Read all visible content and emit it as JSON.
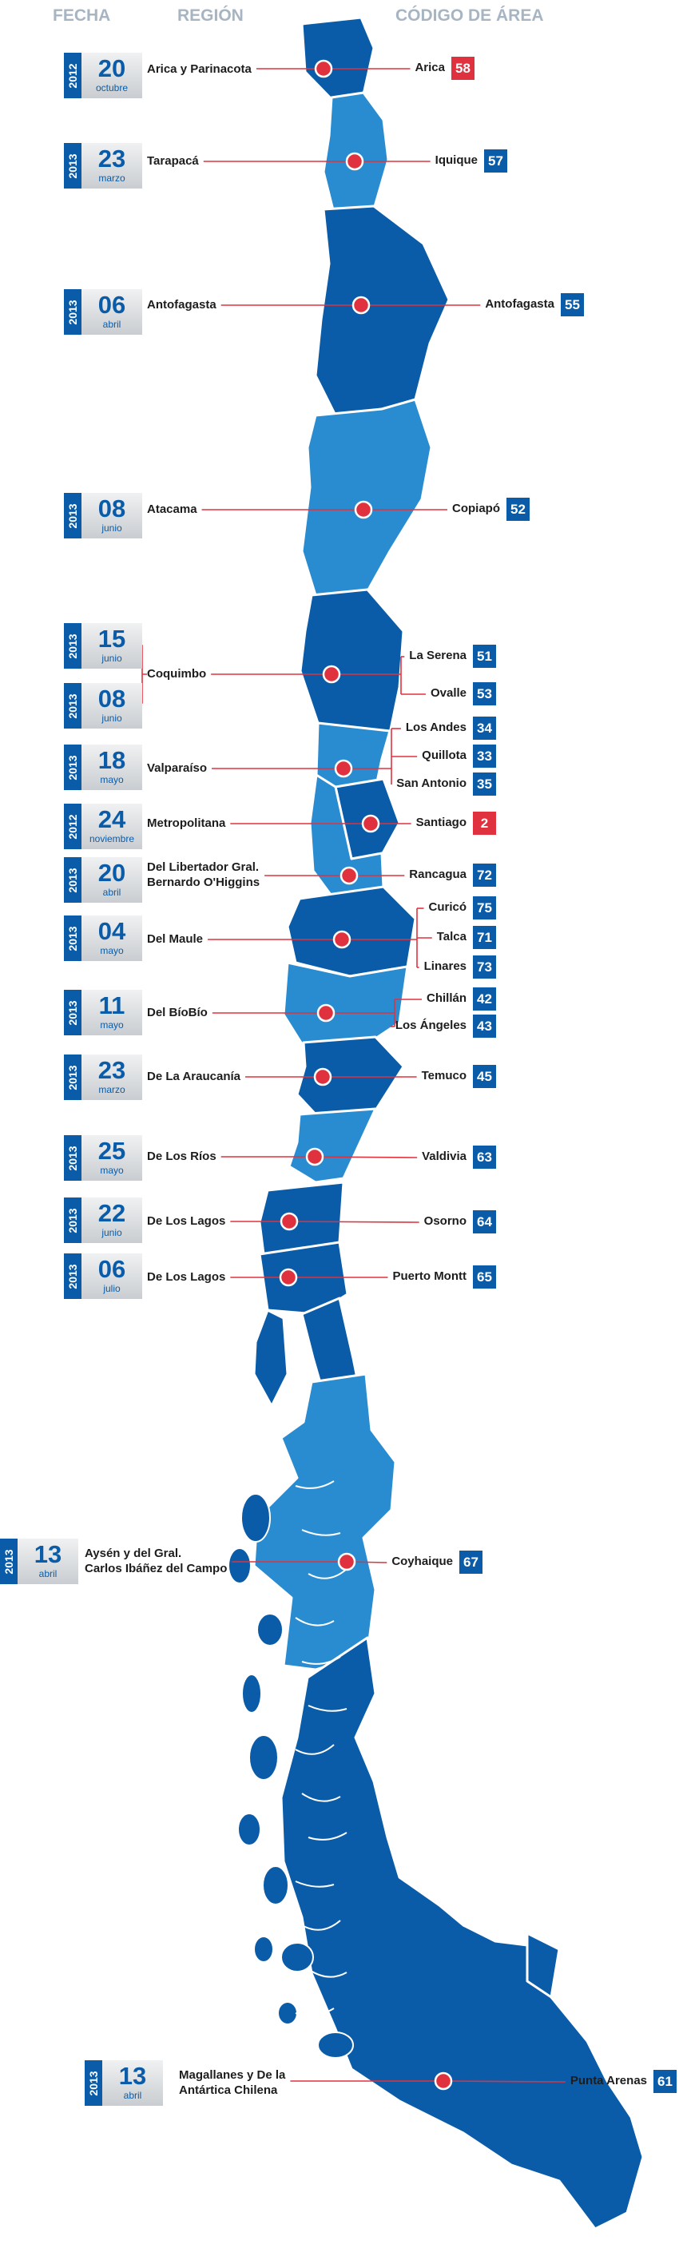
{
  "headers": {
    "fecha": "FECHA",
    "region": "REGIÓN",
    "codigo": "CÓDIGO DE ÁREA"
  },
  "colors": {
    "land_dark": "#0b5ca8",
    "land_light": "#2a8cd0",
    "line": "#e0323e",
    "code_blue": "#0b5ca8",
    "code_red": "#e0323e"
  },
  "dates": [
    {
      "year": "2012",
      "day": "20",
      "month": "octubre"
    },
    {
      "year": "2013",
      "day": "23",
      "month": "marzo"
    },
    {
      "year": "2013",
      "day": "06",
      "month": "abril"
    },
    {
      "year": "2013",
      "day": "08",
      "month": "junio"
    },
    {
      "year": "2013",
      "day": "15",
      "month": "junio"
    },
    {
      "year": "2013",
      "day": "08",
      "month": "junio"
    },
    {
      "year": "2013",
      "day": "18",
      "month": "mayo"
    },
    {
      "year": "2012",
      "day": "24",
      "month": "noviembre"
    },
    {
      "year": "2013",
      "day": "20",
      "month": "abril"
    },
    {
      "year": "2013",
      "day": "04",
      "month": "mayo"
    },
    {
      "year": "2013",
      "day": "11",
      "month": "mayo"
    },
    {
      "year": "2013",
      "day": "23",
      "month": "marzo"
    },
    {
      "year": "2013",
      "day": "25",
      "month": "mayo"
    },
    {
      "year": "2013",
      "day": "22",
      "month": "junio"
    },
    {
      "year": "2013",
      "day": "06",
      "month": "julio"
    },
    {
      "year": "2013",
      "day": "13",
      "month": "abril"
    },
    {
      "year": "2013",
      "day": "13",
      "month": "abril"
    }
  ],
  "regions": [
    {
      "lines": [
        "Arica y Parinacota"
      ]
    },
    {
      "lines": [
        "Tarapacá"
      ]
    },
    {
      "lines": [
        "Antofagasta"
      ]
    },
    {
      "lines": [
        "Atacama"
      ]
    },
    {
      "lines": [
        "Coquimbo"
      ]
    },
    {
      "lines": [
        "Valparaíso"
      ]
    },
    {
      "lines": [
        "Metropolitana"
      ]
    },
    {
      "lines": [
        "Del Libertador Gral.",
        "Bernardo O'Higgins"
      ]
    },
    {
      "lines": [
        "Del Maule"
      ]
    },
    {
      "lines": [
        "Del BíoBío"
      ]
    },
    {
      "lines": [
        "De La Araucanía"
      ]
    },
    {
      "lines": [
        "De Los Ríos"
      ]
    },
    {
      "lines": [
        "De Los Lagos"
      ]
    },
    {
      "lines": [
        "De Los Lagos"
      ]
    },
    {
      "lines": [
        "Aysén y del Gral.",
        "Carlos Ibáñez del Campo"
      ]
    },
    {
      "lines": [
        "Magallanes y De la",
        "Antártica Chilena"
      ]
    }
  ],
  "cities": [
    {
      "name": "Arica",
      "code": "58",
      "highlight": true
    },
    {
      "name": "Iquique",
      "code": "57",
      "highlight": false
    },
    {
      "name": "Antofagasta",
      "code": "55",
      "highlight": false
    },
    {
      "name": "Copiapó",
      "code": "52",
      "highlight": false
    },
    {
      "name": "La Serena",
      "code": "51",
      "highlight": false
    },
    {
      "name": "Ovalle",
      "code": "53",
      "highlight": false
    },
    {
      "name": "Los Andes",
      "code": "34",
      "highlight": false
    },
    {
      "name": "Quillota",
      "code": "33",
      "highlight": false
    },
    {
      "name": "San Antonio",
      "code": "35",
      "highlight": false
    },
    {
      "name": "Santiago",
      "code": "2",
      "highlight": true
    },
    {
      "name": "Rancagua",
      "code": "72",
      "highlight": false
    },
    {
      "name": "Curicó",
      "code": "75",
      "highlight": false
    },
    {
      "name": "Talca",
      "code": "71",
      "highlight": false
    },
    {
      "name": "Linares",
      "code": "73",
      "highlight": false
    },
    {
      "name": "Chillán",
      "code": "42",
      "highlight": false
    },
    {
      "name": "Los Ángeles",
      "code": "43",
      "highlight": false
    },
    {
      "name": "Temuco",
      "code": "45",
      "highlight": false
    },
    {
      "name": "Valdivia",
      "code": "63",
      "highlight": false
    },
    {
      "name": "Osorno",
      "code": "64",
      "highlight": false
    },
    {
      "name": "Puerto Montt",
      "code": "65",
      "highlight": false
    },
    {
      "name": "Coyhaique",
      "code": "67",
      "highlight": false
    },
    {
      "name": "Punta Arenas",
      "code": "61",
      "highlight": false
    }
  ]
}
